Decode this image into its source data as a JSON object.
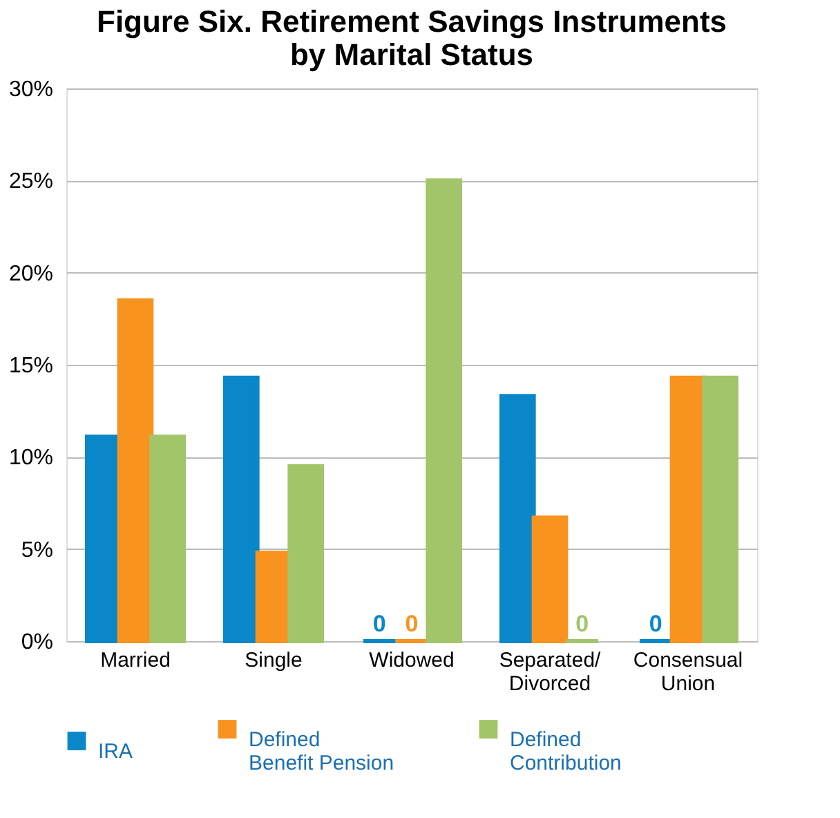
{
  "chart_data": {
    "type": "bar",
    "title": "Figure Six. Retirement Savings Instruments by Marital Status",
    "categories": [
      "Married",
      "Single",
      "Widowed",
      "Separated/ Divorced",
      "Consensual Union"
    ],
    "series": [
      {
        "name": "IRA",
        "color": "#0a87c8",
        "values": [
          11.1,
          14.3,
          0,
          13.3,
          0
        ],
        "value_labels": [
          null,
          null,
          "0",
          null,
          "0"
        ]
      },
      {
        "name": "Defined Benefit Pension",
        "color": "#f7931e",
        "values": [
          18.5,
          4.8,
          0,
          6.7,
          14.3
        ],
        "value_labels": [
          null,
          null,
          "0",
          null,
          null
        ]
      },
      {
        "name": "Defined Contribution",
        "color": "#a3c569",
        "values": [
          11.1,
          9.5,
          25,
          0,
          14.3
        ],
        "value_labels": [
          null,
          null,
          null,
          "0",
          null
        ]
      }
    ],
    "ylim": [
      0,
      30
    ],
    "yticks": [
      {
        "value": 0,
        "label": "0%"
      },
      {
        "value": 5,
        "label": "5%"
      },
      {
        "value": 10,
        "label": "10%"
      },
      {
        "value": 15,
        "label": "15%"
      },
      {
        "value": 20,
        "label": "20%"
      },
      {
        "value": 25,
        "label": "25%"
      },
      {
        "value": 30,
        "label": "30%"
      }
    ],
    "grid": "y",
    "legend": "bottom"
  }
}
